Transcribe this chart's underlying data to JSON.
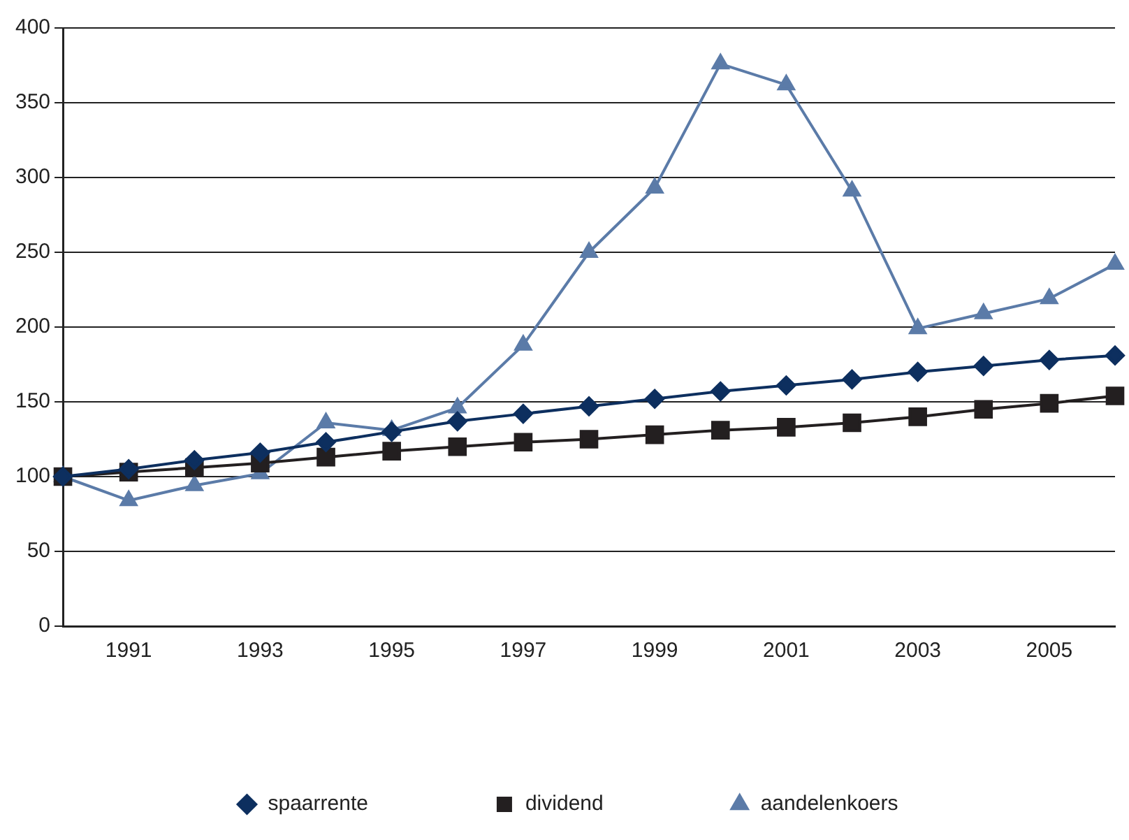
{
  "chart_data": {
    "type": "line",
    "categories": [
      null,
      "1991",
      null,
      "1993",
      null,
      "1995",
      null,
      "1997",
      null,
      "1999",
      null,
      "2001",
      null,
      "2003",
      null,
      "2005",
      null
    ],
    "series": [
      {
        "name": "spaarrente",
        "color": "#0d2f5f",
        "marker": "diamond",
        "values": [
          100,
          105,
          111,
          116,
          123,
          130,
          137,
          142,
          147,
          152,
          157,
          161,
          165,
          170,
          174,
          178,
          181
        ]
      },
      {
        "name": "dividend",
        "color": "#231f20",
        "marker": "square",
        "values": [
          100,
          103,
          106,
          109,
          113,
          117,
          120,
          123,
          125,
          128,
          131,
          133,
          136,
          140,
          145,
          149,
          154
        ]
      },
      {
        "name": "aandelenkoers",
        "color": "#5b7ba8",
        "marker": "triangle",
        "values": [
          100,
          84,
          94,
          102,
          136,
          131,
          146,
          188,
          250,
          293,
          376,
          362,
          291,
          199,
          209,
          219,
          242
        ]
      }
    ],
    "ylim": [
      0,
      400
    ],
    "yticks": [
      0,
      50,
      100,
      150,
      200,
      250,
      300,
      350,
      400
    ],
    "grid": "y",
    "legend": "bottom",
    "line_style": "solid"
  }
}
